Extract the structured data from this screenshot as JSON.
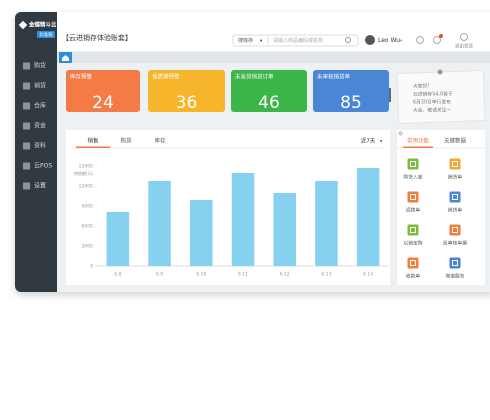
{
  "app": {
    "logo": "金蝶精斗云",
    "edition": "标准版",
    "title": "【云进销存体验账套】",
    "search_scope": "搜库存",
    "search_placeholder": "请输入商品编码或名称",
    "user": "Leo Wu",
    "logout": "退出登录"
  },
  "menu": [
    "购货",
    "销货",
    "仓库",
    "资金",
    "资料",
    "云POS",
    "设置"
  ],
  "cards": [
    {
      "label": "库存预警",
      "value": 24
    },
    {
      "label": "保质期预警",
      "value": 36
    },
    {
      "label": "未发货销货订单",
      "value": 46
    },
    {
      "label": "未审核销货单",
      "value": 85
    }
  ],
  "notice": [
    "大家好!",
    "云进销存V4.0将于",
    "6月30日举行发布",
    "大会，敬请关注~"
  ],
  "chart_data": {
    "type": "bar",
    "tabs": [
      "销售",
      "购货",
      "库存"
    ],
    "range": "近7天",
    "ylabel": "销售额(元)",
    "categories": [
      "6.8",
      "6.9",
      "6.10",
      "6.11",
      "6.12",
      "6.13",
      "6.14"
    ],
    "values": [
      8100,
      12750,
      9900,
      13950,
      10950,
      12750,
      14700
    ],
    "color": "#86d0f0",
    "ylim": [
      0,
      15000
    ],
    "yticks": [
      0,
      3000,
      6000,
      9000,
      12000,
      15000
    ],
    "grid": false
  },
  "shortcuts": {
    "tabs": [
      "常用功能",
      "关键数据"
    ],
    "items": [
      "购货入库",
      "销货单",
      "调拨单",
      "销货单",
      "以销定购",
      "反审核单据",
      "收款单",
      "增值服务"
    ]
  }
}
